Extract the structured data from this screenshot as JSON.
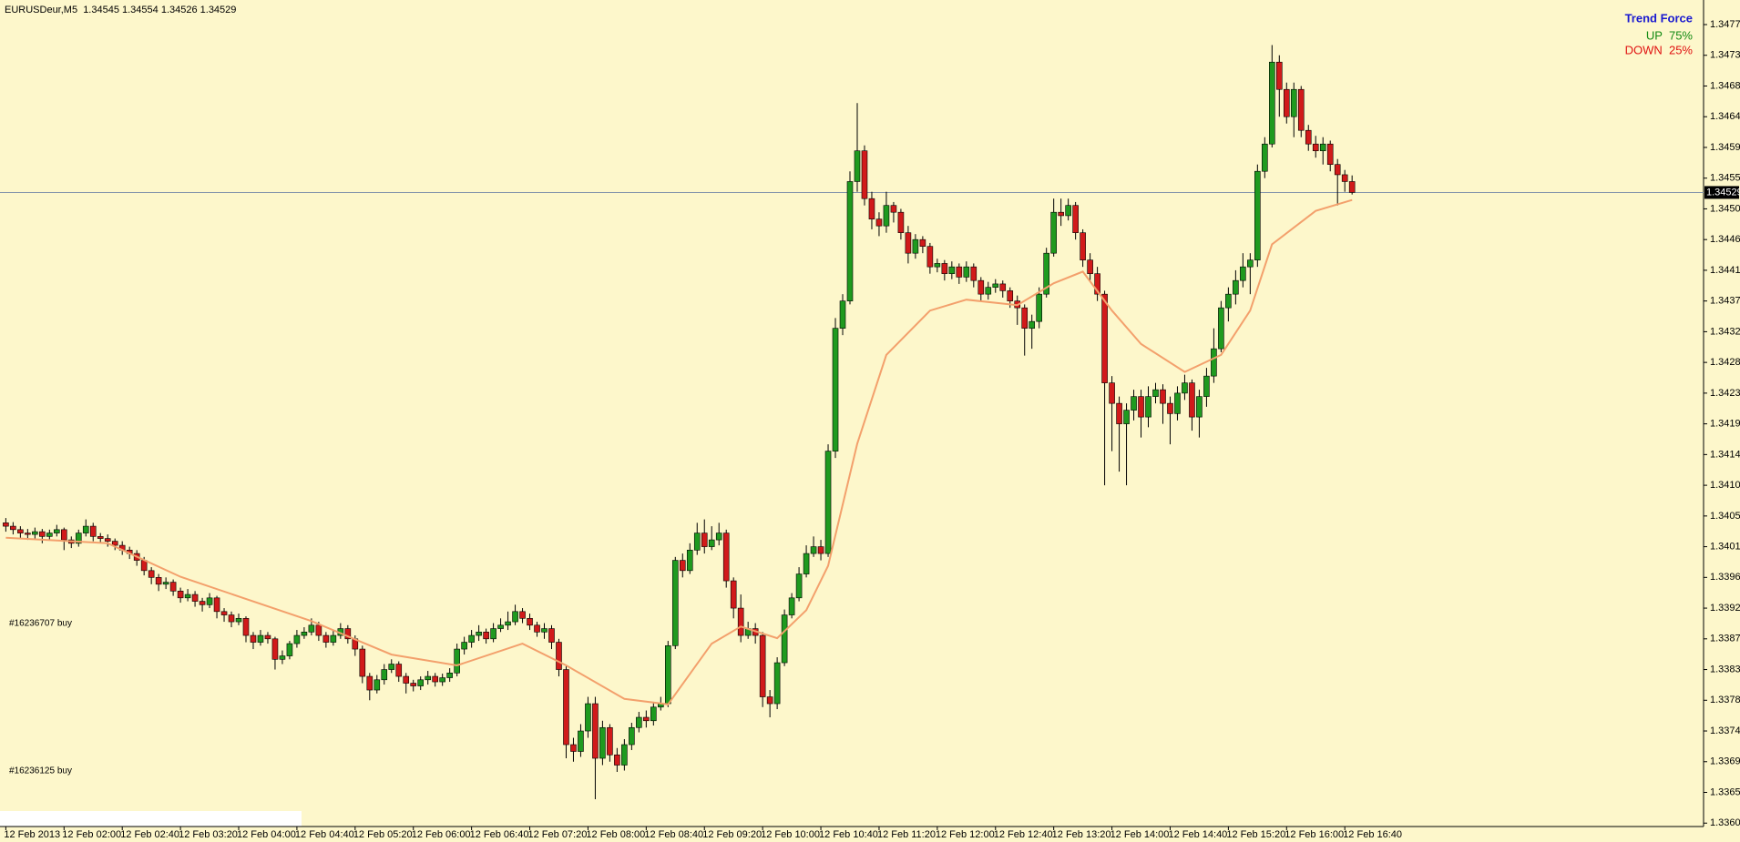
{
  "chart_data": {
    "type": "candlestick",
    "title": "EURUSDeur,M5  1.34545 1.34554 1.34526 1.34529",
    "colors": {
      "up": "#1f9a1f",
      "down": "#d11a1a",
      "wick": "#000000",
      "background": "#fdf7cb",
      "price_line": "#8495ab"
    },
    "ohlc": [
      [
        1.34045,
        1.34052,
        1.34032,
        1.3404
      ],
      [
        1.3404,
        1.34046,
        1.34028,
        1.34035
      ],
      [
        1.34035,
        1.3404,
        1.34022,
        1.3403
      ],
      [
        1.3403,
        1.34036,
        1.3402,
        1.34028
      ],
      [
        1.34028,
        1.34038,
        1.34022,
        1.34032
      ],
      [
        1.34032,
        1.34036,
        1.34015,
        1.34025
      ],
      [
        1.34025,
        1.34035,
        1.3402,
        1.3403
      ],
      [
        1.3403,
        1.34042,
        1.34025,
        1.34035
      ],
      [
        1.34035,
        1.34038,
        1.34005,
        1.3402
      ],
      [
        1.3402,
        1.34025,
        1.34008,
        1.34015
      ],
      [
        1.34015,
        1.34035,
        1.3401,
        1.3403
      ],
      [
        1.3403,
        1.3405,
        1.34025,
        1.3404
      ],
      [
        1.3404,
        1.34045,
        1.34018,
        1.34025
      ],
      [
        1.34025,
        1.3403,
        1.34015,
        1.34022
      ],
      [
        1.34022,
        1.34028,
        1.3401,
        1.34018
      ],
      [
        1.34018,
        1.34022,
        1.34005,
        1.34012
      ],
      [
        1.34012,
        1.34018,
        1.33998,
        1.34005
      ],
      [
        1.34005,
        1.3401,
        1.33992,
        1.34
      ],
      [
        1.34,
        1.34005,
        1.33982,
        1.3399
      ],
      [
        1.3399,
        1.33995,
        1.33968,
        1.33975
      ],
      [
        1.33975,
        1.3398,
        1.33955,
        1.33965
      ],
      [
        1.33965,
        1.3397,
        1.33945,
        1.33955
      ],
      [
        1.33955,
        1.33965,
        1.33948,
        1.33958
      ],
      [
        1.33958,
        1.33962,
        1.33938,
        1.33945
      ],
      [
        1.33945,
        1.3395,
        1.33928,
        1.33935
      ],
      [
        1.33935,
        1.33948,
        1.3393,
        1.3394
      ],
      [
        1.3394,
        1.33945,
        1.33922,
        1.3393
      ],
      [
        1.3393,
        1.33935,
        1.33915,
        1.33925
      ],
      [
        1.33925,
        1.33942,
        1.3392,
        1.33935
      ],
      [
        1.33935,
        1.33938,
        1.33905,
        1.33915
      ],
      [
        1.33915,
        1.3392,
        1.339,
        1.3391
      ],
      [
        1.3391,
        1.33915,
        1.33892,
        1.339
      ],
      [
        1.339,
        1.33912,
        1.33895,
        1.33905
      ],
      [
        1.33905,
        1.33908,
        1.3387,
        1.3388
      ],
      [
        1.3388,
        1.33885,
        1.3386,
        1.3387
      ],
      [
        1.3387,
        1.33888,
        1.33865,
        1.3388
      ],
      [
        1.3388,
        1.33885,
        1.33868,
        1.33875
      ],
      [
        1.33875,
        1.33878,
        1.3383,
        1.33845
      ],
      [
        1.33845,
        1.33858,
        1.33838,
        1.3385
      ],
      [
        1.3385,
        1.33872,
        1.33845,
        1.33868
      ],
      [
        1.33868,
        1.33888,
        1.33862,
        1.3388
      ],
      [
        1.3388,
        1.33892,
        1.33875,
        1.33885
      ],
      [
        1.33885,
        1.33905,
        1.3388,
        1.33895
      ],
      [
        1.33895,
        1.339,
        1.33872,
        1.3388
      ],
      [
        1.3388,
        1.33885,
        1.33862,
        1.3387
      ],
      [
        1.3387,
        1.33888,
        1.33865,
        1.3388
      ],
      [
        1.3388,
        1.33898,
        1.33875,
        1.3389
      ],
      [
        1.3389,
        1.33895,
        1.33868,
        1.33875
      ],
      [
        1.33875,
        1.3388,
        1.3385,
        1.3386
      ],
      [
        1.3386,
        1.33865,
        1.3381,
        1.3382
      ],
      [
        1.3382,
        1.33825,
        1.33785,
        1.338
      ],
      [
        1.338,
        1.33822,
        1.33795,
        1.33815
      ],
      [
        1.33815,
        1.33838,
        1.33808,
        1.3383
      ],
      [
        1.3383,
        1.33845,
        1.33825,
        1.33838
      ],
      [
        1.33838,
        1.33842,
        1.33812,
        1.3382
      ],
      [
        1.3382,
        1.33825,
        1.33795,
        1.3381
      ],
      [
        1.3381,
        1.33815,
        1.33798,
        1.33806
      ],
      [
        1.33806,
        1.3382,
        1.338,
        1.33815
      ],
      [
        1.33815,
        1.33828,
        1.33808,
        1.3382
      ],
      [
        1.3382,
        1.33825,
        1.33805,
        1.33812
      ],
      [
        1.33812,
        1.33824,
        1.33806,
        1.33818
      ],
      [
        1.33818,
        1.33832,
        1.33812,
        1.33825
      ],
      [
        1.33825,
        1.33868,
        1.3382,
        1.3386
      ],
      [
        1.3386,
        1.33878,
        1.33852,
        1.3387
      ],
      [
        1.3387,
        1.33888,
        1.33862,
        1.3388
      ],
      [
        1.3388,
        1.33895,
        1.33872,
        1.33885
      ],
      [
        1.33885,
        1.3389,
        1.33868,
        1.33875
      ],
      [
        1.33875,
        1.33898,
        1.3387,
        1.3389
      ],
      [
        1.3389,
        1.33905,
        1.33885,
        1.33895
      ],
      [
        1.33895,
        1.33915,
        1.33888,
        1.339
      ],
      [
        1.339,
        1.33925,
        1.33895,
        1.33915
      ],
      [
        1.33915,
        1.3392,
        1.33898,
        1.33905
      ],
      [
        1.33905,
        1.33912,
        1.33888,
        1.33895
      ],
      [
        1.33895,
        1.339,
        1.33878,
        1.33885
      ],
      [
        1.33885,
        1.33898,
        1.33875,
        1.3389
      ],
      [
        1.3389,
        1.33895,
        1.3386,
        1.3387
      ],
      [
        1.3387,
        1.33875,
        1.3382,
        1.3383
      ],
      [
        1.3383,
        1.33835,
        1.337,
        1.3372
      ],
      [
        1.3372,
        1.3373,
        1.33695,
        1.3371
      ],
      [
        1.3371,
        1.3375,
        1.33702,
        1.3374
      ],
      [
        1.3374,
        1.3379,
        1.3373,
        1.3378
      ],
      [
        1.3378,
        1.3379,
        1.3364,
        1.337
      ],
      [
        1.337,
        1.33755,
        1.3369,
        1.33745
      ],
      [
        1.33745,
        1.3375,
        1.33695,
        1.33705
      ],
      [
        1.33705,
        1.33715,
        1.3368,
        1.3369
      ],
      [
        1.3369,
        1.33728,
        1.33682,
        1.3372
      ],
      [
        1.3372,
        1.33752,
        1.33712,
        1.33745
      ],
      [
        1.33745,
        1.33768,
        1.33738,
        1.3376
      ],
      [
        1.3376,
        1.3377,
        1.33745,
        1.33755
      ],
      [
        1.33755,
        1.33782,
        1.33748,
        1.33775
      ],
      [
        1.33775,
        1.3379,
        1.3377,
        1.3378
      ],
      [
        1.3378,
        1.33872,
        1.33775,
        1.33865
      ],
      [
        1.33865,
        1.33995,
        1.3386,
        1.3399
      ],
      [
        1.3399,
        1.34,
        1.33965,
        1.33975
      ],
      [
        1.33975,
        1.34015,
        1.3397,
        1.34005
      ],
      [
        1.34005,
        1.34045,
        1.33998,
        1.3403
      ],
      [
        1.3403,
        1.3405,
        1.34,
        1.3401
      ],
      [
        1.3401,
        1.3404,
        1.34005,
        1.3402
      ],
      [
        1.3402,
        1.34045,
        1.34012,
        1.3403
      ],
      [
        1.3403,
        1.34035,
        1.3395,
        1.3396
      ],
      [
        1.3396,
        1.33965,
        1.33905,
        1.3392
      ],
      [
        1.3392,
        1.3394,
        1.3387,
        1.3388
      ],
      [
        1.3388,
        1.339,
        1.33875,
        1.3389
      ],
      [
        1.3389,
        1.33898,
        1.33868,
        1.3388
      ],
      [
        1.3388,
        1.33885,
        1.33775,
        1.3379
      ],
      [
        1.3379,
        1.338,
        1.3376,
        1.3378
      ],
      [
        1.3378,
        1.33848,
        1.33772,
        1.3384
      ],
      [
        1.3384,
        1.33918,
        1.33835,
        1.3391
      ],
      [
        1.3391,
        1.33942,
        1.33905,
        1.33935
      ],
      [
        1.33935,
        1.3398,
        1.3393,
        1.3397
      ],
      [
        1.3397,
        1.34012,
        1.33965,
        1.34
      ],
      [
        1.34,
        1.34025,
        1.33995,
        1.3401
      ],
      [
        1.3401,
        1.3402,
        1.3399,
        1.34
      ],
      [
        1.34,
        1.3416,
        1.33995,
        1.3415
      ],
      [
        1.3415,
        1.34345,
        1.3414,
        1.3433
      ],
      [
        1.3433,
        1.3438,
        1.3432,
        1.3437
      ],
      [
        1.3437,
        1.3456,
        1.34365,
        1.34545
      ],
      [
        1.34545,
        1.3466,
        1.3453,
        1.3459
      ],
      [
        1.3459,
        1.34598,
        1.3451,
        1.3452
      ],
      [
        1.3452,
        1.3453,
        1.34475,
        1.3449
      ],
      [
        1.3449,
        1.345,
        1.34465,
        1.3448
      ],
      [
        1.3448,
        1.3453,
        1.3447,
        1.3451
      ],
      [
        1.3451,
        1.34515,
        1.34485,
        1.345
      ],
      [
        1.345,
        1.34505,
        1.3446,
        1.3447
      ],
      [
        1.3447,
        1.3448,
        1.34425,
        1.3444
      ],
      [
        1.3444,
        1.34468,
        1.34432,
        1.3446
      ],
      [
        1.3446,
        1.34465,
        1.3444,
        1.3445
      ],
      [
        1.3445,
        1.34455,
        1.3441,
        1.3442
      ],
      [
        1.3442,
        1.34432,
        1.34412,
        1.34425
      ],
      [
        1.34425,
        1.3443,
        1.344,
        1.3441
      ],
      [
        1.3441,
        1.34428,
        1.34402,
        1.3442
      ],
      [
        1.3442,
        1.34425,
        1.34395,
        1.34405
      ],
      [
        1.34405,
        1.34428,
        1.34398,
        1.3442
      ],
      [
        1.3442,
        1.34425,
        1.3439,
        1.344
      ],
      [
        1.344,
        1.34405,
        1.3437,
        1.3438
      ],
      [
        1.3438,
        1.34398,
        1.34372,
        1.3439
      ],
      [
        1.3439,
        1.34402,
        1.34382,
        1.34395
      ],
      [
        1.34395,
        1.344,
        1.34375,
        1.34385
      ],
      [
        1.34385,
        1.3439,
        1.3436,
        1.3437
      ],
      [
        1.3437,
        1.34378,
        1.34335,
        1.3436
      ],
      [
        1.3436,
        1.34365,
        1.3429,
        1.3433
      ],
      [
        1.3433,
        1.3435,
        1.343,
        1.3434
      ],
      [
        1.3434,
        1.3439,
        1.3433,
        1.3438
      ],
      [
        1.3438,
        1.34448,
        1.34375,
        1.3444
      ],
      [
        1.3444,
        1.3452,
        1.34435,
        1.345
      ],
      [
        1.345,
        1.3452,
        1.3448,
        1.34495
      ],
      [
        1.34495,
        1.3452,
        1.34488,
        1.3451
      ],
      [
        1.3451,
        1.34515,
        1.3446,
        1.3447
      ],
      [
        1.3447,
        1.34475,
        1.3442,
        1.3443
      ],
      [
        1.3443,
        1.3444,
        1.344,
        1.3441
      ],
      [
        1.3441,
        1.3442,
        1.3437,
        1.3438
      ],
      [
        1.3438,
        1.34385,
        1.341,
        1.3425
      ],
      [
        1.3425,
        1.3426,
        1.3415,
        1.3422
      ],
      [
        1.3422,
        1.3423,
        1.3412,
        1.3419
      ],
      [
        1.3419,
        1.3422,
        1.341,
        1.3421
      ],
      [
        1.3421,
        1.3424,
        1.34195,
        1.3423
      ],
      [
        1.3423,
        1.3424,
        1.3417,
        1.342
      ],
      [
        1.342,
        1.34245,
        1.34185,
        1.3423
      ],
      [
        1.3423,
        1.3425,
        1.3422,
        1.3424
      ],
      [
        1.3424,
        1.34248,
        1.3419,
        1.3422
      ],
      [
        1.3422,
        1.3423,
        1.3416,
        1.34205
      ],
      [
        1.34205,
        1.34245,
        1.34195,
        1.34235
      ],
      [
        1.34235,
        1.34262,
        1.34225,
        1.3425
      ],
      [
        1.3425,
        1.34255,
        1.3418,
        1.342
      ],
      [
        1.342,
        1.3424,
        1.3417,
        1.3423
      ],
      [
        1.3423,
        1.34272,
        1.34215,
        1.3426
      ],
      [
        1.3426,
        1.3433,
        1.3425,
        1.343
      ],
      [
        1.343,
        1.3437,
        1.34295,
        1.3436
      ],
      [
        1.3436,
        1.3439,
        1.3434,
        1.3438
      ],
      [
        1.3438,
        1.34415,
        1.34365,
        1.344
      ],
      [
        1.344,
        1.3444,
        1.3439,
        1.3442
      ],
      [
        1.3442,
        1.3444,
        1.3438,
        1.3443
      ],
      [
        1.3443,
        1.3457,
        1.3442,
        1.3456
      ],
      [
        1.3456,
        1.3461,
        1.3455,
        1.346
      ],
      [
        1.346,
        1.34745,
        1.34595,
        1.3472
      ],
      [
        1.3472,
        1.3473,
        1.3464,
        1.3468
      ],
      [
        1.3468,
        1.3469,
        1.3463,
        1.3464
      ],
      [
        1.3464,
        1.3469,
        1.3461,
        1.3468
      ],
      [
        1.3468,
        1.34685,
        1.3461,
        1.3462
      ],
      [
        1.3462,
        1.34628,
        1.3459,
        1.346
      ],
      [
        1.346,
        1.34612,
        1.3458,
        1.3459
      ],
      [
        1.3459,
        1.3461,
        1.3457,
        1.346
      ],
      [
        1.346,
        1.34605,
        1.3456,
        1.3457
      ],
      [
        1.3457,
        1.34578,
        1.3451,
        1.34555
      ],
      [
        1.34555,
        1.34562,
        1.3453,
        1.34545
      ],
      [
        1.34545,
        1.34554,
        1.34526,
        1.34529
      ]
    ],
    "ma": {
      "color": "#f3a06c",
      "x": [
        0,
        14,
        24,
        42,
        53,
        62,
        71,
        77,
        85,
        91,
        97,
        101,
        106,
        110,
        113,
        117,
        121,
        127,
        132,
        139,
        144,
        148,
        152,
        156,
        162,
        167,
        171,
        174,
        180,
        185
      ],
      "values": [
        1.34023,
        1.34015,
        1.33966,
        1.33901,
        1.33852,
        1.33836,
        1.33868,
        1.33836,
        1.33787,
        1.33779,
        1.33868,
        1.33893,
        1.33876,
        1.33917,
        1.33982,
        1.34161,
        1.34291,
        1.34356,
        1.34372,
        1.34364,
        1.34396,
        1.34413,
        1.34356,
        1.34307,
        1.34266,
        1.34291,
        1.34356,
        1.34453,
        1.34502,
        1.34518
      ]
    },
    "price_line": 1.34529,
    "xlim": [
      -0.8,
      233.3
    ],
    "xticks": [
      {
        "value": 0,
        "label": "12 Feb 2013"
      },
      {
        "value": 8,
        "label": "12 Feb 02:00"
      },
      {
        "value": 16,
        "label": "12 Feb 02:40"
      },
      {
        "value": 24,
        "label": "12 Feb 03:20"
      },
      {
        "value": 32,
        "label": "12 Feb 04:00"
      },
      {
        "value": 40,
        "label": "12 Feb 04:40"
      },
      {
        "value": 48,
        "label": "12 Feb 05:20"
      },
      {
        "value": 56,
        "label": "12 Feb 06:00"
      },
      {
        "value": 64,
        "label": "12 Feb 06:40"
      },
      {
        "value": 72,
        "label": "12 Feb 07:20"
      },
      {
        "value": 80,
        "label": "12 Feb 08:00"
      },
      {
        "value": 88,
        "label": "12 Feb 08:40"
      },
      {
        "value": 96,
        "label": "12 Feb 09:20"
      },
      {
        "value": 104,
        "label": "12 Feb 10:00"
      },
      {
        "value": 112,
        "label": "12 Feb 10:40"
      },
      {
        "value": 120,
        "label": "12 Feb 11:20"
      },
      {
        "value": 128,
        "label": "12 Feb 12:00"
      },
      {
        "value": 136,
        "label": "12 Feb 12:40"
      },
      {
        "value": 144,
        "label": "12 Feb 13:20"
      },
      {
        "value": 152,
        "label": "12 Feb 14:00"
      },
      {
        "value": 160,
        "label": "12 Feb 14:40"
      },
      {
        "value": 168,
        "label": "12 Feb 15:20"
      },
      {
        "value": 176,
        "label": "12 Feb 16:00"
      },
      {
        "value": 184,
        "label": "12 Feb 16:40"
      }
    ],
    "ylim": [
      1.336,
      1.34811
    ],
    "yticks": [
      1.34775,
      {
        "value": 1.3473,
        "label": "1.34730"
      },
      1.34685,
      {
        "value": 1.3464,
        "label": "1.34640"
      },
      1.34595,
      {
        "value": 1.3455,
        "label": "1.34550"
      },
      1.34505,
      {
        "value": 1.3446,
        "label": "1.34460"
      },
      1.34415,
      {
        "value": 1.3437,
        "label": "1.34370"
      },
      1.34325,
      {
        "value": 1.3428,
        "label": "1.34280"
      },
      1.34235,
      {
        "value": 1.3419,
        "label": "1.34190"
      },
      1.34145,
      {
        "value": 1.341,
        "label": "1.34100"
      },
      1.34055,
      {
        "value": 1.3401,
        "label": "1.34010"
      },
      1.33965,
      {
        "value": 1.3392,
        "label": "1.33920"
      },
      1.33875,
      {
        "value": 1.3383,
        "label": "1.33830"
      },
      1.33785,
      {
        "value": 1.3374,
        "label": "1.33740"
      },
      1.33695,
      {
        "value": 1.3365,
        "label": "1.33650"
      },
      1.33605
    ]
  },
  "indicator": {
    "title": "Trend Force",
    "up": "UP  75%",
    "down": "DOWN  25%"
  },
  "orders": [
    "#16236707 buy",
    "#16236125 buy"
  ]
}
